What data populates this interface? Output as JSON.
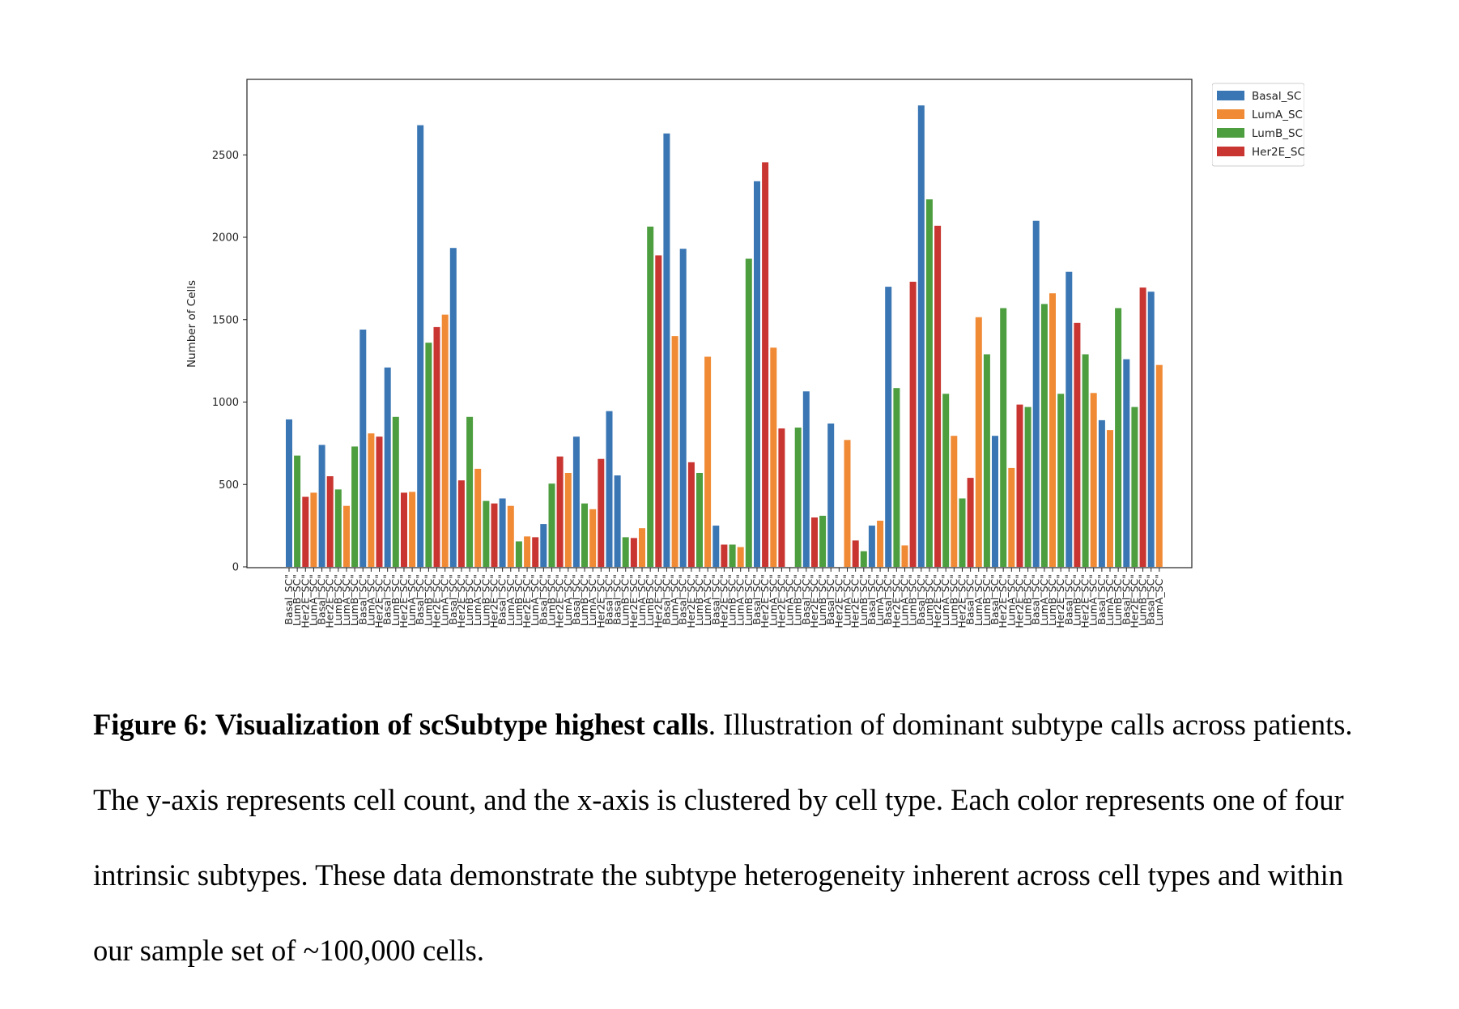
{
  "chart_data": {
    "type": "bar",
    "ylabel": "Number of Cells",
    "xlabel": "",
    "ylim": [
      0,
      2950
    ],
    "yticks": [
      0,
      500,
      1000,
      1500,
      2000,
      2500
    ],
    "grid": false,
    "legend_position": "outside-top-right",
    "legend": [
      "Basal_SC",
      "LumA_SC",
      "LumB_SC",
      "Her2E_SC"
    ],
    "colors": {
      "Basal_SC": "#3a76b4",
      "LumA_SC": "#f08a35",
      "LumB_SC": "#4d9e3f",
      "Her2E_SC": "#c93530"
    },
    "categories": [
      "Basal_SC\"",
      "LumB_SC\"",
      "Her2E_SC\"",
      "LumA_SC\"",
      "Basal_SC\"",
      "Her2E_SC\"",
      "LumB_SC\"",
      "LumA_SC\"",
      "LumB_SC\"",
      "Basal_SC\"",
      "LumA_SC\"",
      "Her2E_SC\"",
      "Basal_SC\"",
      "LumB_SC\"",
      "Her2E_SC\"",
      "LumA_SC\"",
      "Basal_SC\"",
      "LumB_SC\"",
      "Her2E_SC\"",
      "LumA_SC\"",
      "Basal_SC\"",
      "Her2E_SC\"",
      "LumB_SC\"",
      "LumA_SC\"",
      "LumB_SC\"",
      "Her2E_SC\"",
      "Basal_SC\"",
      "LumA_SC\"",
      "LumB_SC\"",
      "Her2E_SC\"",
      "LumA_SC\"",
      "Basal_SC\"",
      "LumB_SC\"",
      "Her2E_SC\"",
      "LumA_SC\"",
      "Basal_SC\"",
      "LumB_SC\"",
      "LumA_SC\"",
      "Her2E_SC\"",
      "Basal_SC\"",
      "Basal_SC\"",
      "LumB_SC\"",
      "Her2E_SC\"",
      "LumA_SC\"",
      "LumB_SC\"",
      "Her2E_SC\"",
      "Basal_SC\"",
      "LumA_SC\"",
      "Basal_SC\"",
      "Her2E_SC\"",
      "LumB_SC\"",
      "LumA_SC\"",
      "Basal_SC\"",
      "Her2E_SC\"",
      "LumB_SC\"",
      "LumA_SC\"",
      "LumB_SC\"",
      "Basal_SC\"",
      "Her2E_SC\"",
      "LumA_SC\"",
      "Her2E_SC\"",
      "LumA_SC\"",
      "LumB_SC\"",
      "Basal_SC\"",
      "Her2E_SC\"",
      "LumB_SC\"",
      "Basal_SC\"",
      "Her2E_SC\"",
      "LumA_SC\"",
      "Her2E_SC\"",
      "LumB_SC\"",
      "Basal_SC\"",
      "LumA_SC\"",
      "Basal_SC\"",
      "Her2E_SC\"",
      "LumA_SC\"",
      "LumB_SC\"",
      "Basal_SC\"",
      "LumB_SC\"",
      "Her2E_SC\"",
      "LumA_SC\"",
      "LumB_SC\"",
      "Her2E_SC\"",
      "Basal_SC\"",
      "LumA_SC\"",
      "LumB_SC\"",
      "Basal_SC\"",
      "Her2E_SC\"",
      "LumA_SC\"",
      "Her2E_SC\"",
      "LumB_SC\"",
      "Basal_SC\"",
      "LumA_SC\"",
      "LumB_SC\"",
      "Her2E_SC\"",
      "Basal_SC\"",
      "LumB_SC\"",
      "Her2E_SC\"",
      "LumA_SC\"",
      "Basal_SC\"",
      "LumA_SC\"",
      "LumB_SC\"",
      "Basal_SC\"",
      "Her2E_SC\"",
      "LumB_SC\"",
      "Basal_SC\"",
      "LumA_SC\""
    ],
    "series": [
      {
        "name": "Basal_SC",
        "positions": [
          0,
          4,
          9,
          12,
          16,
          20,
          26,
          31,
          35,
          39,
          40,
          46,
          48,
          52,
          57,
          63,
          66,
          71,
          73,
          77,
          86,
          91,
          95,
          99,
          102,
          105
        ],
        "values": [
          895,
          740,
          1440,
          1210,
          2680,
          1935,
          415,
          260,
          790,
          945,
          555,
          2630,
          1930,
          250,
          2340,
          1065,
          870,
          250,
          1700,
          2800,
          795,
          2100,
          1790,
          890,
          1260,
          1670
        ]
      },
      {
        "name": "LumA_SC",
        "positions": [
          3,
          7,
          10,
          15,
          19,
          23,
          27,
          29,
          34,
          37,
          43,
          47,
          51,
          55,
          59,
          68,
          72,
          75,
          81,
          84,
          88,
          93,
          98,
          100,
          106
        ],
        "values": [
          450,
          370,
          810,
          455,
          1530,
          595,
          370,
          185,
          570,
          350,
          235,
          1400,
          1275,
          120,
          1330,
          770,
          280,
          130,
          795,
          1515,
          600,
          1660,
          1055,
          830,
          1225
        ]
      },
      {
        "name": "LumB_SC",
        "positions": [
          1,
          6,
          8,
          13,
          17,
          22,
          24,
          28,
          32,
          36,
          41,
          44,
          50,
          54,
          56,
          62,
          65,
          70,
          74,
          78,
          80,
          82,
          85,
          87,
          90,
          92,
          94,
          97,
          101,
          103
        ],
        "values": [
          675,
          470,
          730,
          910,
          1360,
          910,
          400,
          155,
          505,
          385,
          180,
          2065,
          570,
          135,
          1870,
          845,
          310,
          95,
          1085,
          2230,
          1050,
          415,
          1290,
          1570,
          970,
          1595,
          1050,
          1290,
          1570,
          970
        ],
        "note_excluded": true
      },
      {
        "name": "Her2E_SC",
        "positions": [
          2,
          5,
          11,
          14,
          18,
          21,
          25,
          30,
          33,
          38,
          42,
          45,
          49,
          53,
          58,
          60,
          64,
          69,
          76,
          79,
          83,
          89,
          96,
          104
        ],
        "values": [
          425,
          550,
          790,
          450,
          1455,
          525,
          385,
          180,
          670,
          655,
          175,
          1890,
          635,
          135,
          2455,
          840,
          300,
          160,
          1730,
          2070,
          540,
          985,
          1480,
          1695
        ]
      }
    ]
  },
  "caption": {
    "bold": "Figure 6: Visualization of scSubtype highest calls",
    "text": ". Illustration of dominant subtype calls across patients. The y-axis represents cell count, and the x-axis is clustered by cell type. Each color represents one of four intrinsic subtypes. These data demonstrate the subtype heterogeneity inherent across cell types and within our sample set of ~100,000 cells."
  }
}
